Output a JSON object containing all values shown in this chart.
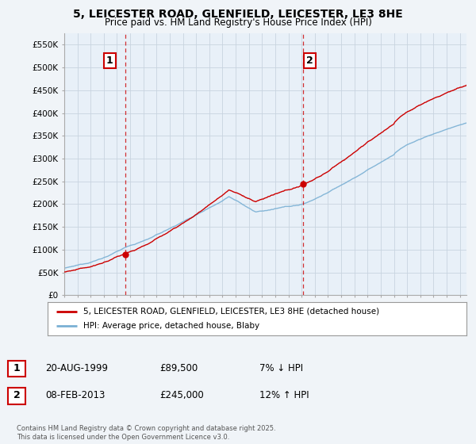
{
  "title": "5, LEICESTER ROAD, GLENFIELD, LEICESTER, LE3 8HE",
  "subtitle": "Price paid vs. HM Land Registry's House Price Index (HPI)",
  "ylabel_ticks": [
    "£0",
    "£50K",
    "£100K",
    "£150K",
    "£200K",
    "£250K",
    "£300K",
    "£350K",
    "£400K",
    "£450K",
    "£500K",
    "£550K"
  ],
  "ytick_values": [
    0,
    50000,
    100000,
    150000,
    200000,
    250000,
    300000,
    350000,
    400000,
    450000,
    500000,
    550000
  ],
  "ylim": [
    0,
    575000
  ],
  "background_color": "#f0f4f8",
  "plot_bg_color": "#e8f0f8",
  "grid_color": "#c8d4e0",
  "line1_color": "#cc0000",
  "line2_color": "#7ab0d4",
  "sale1_date_x": 1999.64,
  "sale1_price": 89500,
  "sale2_date_x": 2013.1,
  "sale2_price": 245000,
  "vline_color": "#cc0000",
  "legend_label1": "5, LEICESTER ROAD, GLENFIELD, LEICESTER, LE3 8HE (detached house)",
  "legend_label2": "HPI: Average price, detached house, Blaby",
  "annotation1_date": "20-AUG-1999",
  "annotation1_price": "£89,500",
  "annotation1_hpi": "7% ↓ HPI",
  "annotation2_date": "08-FEB-2013",
  "annotation2_price": "£245,000",
  "annotation2_hpi": "12% ↑ HPI",
  "footer": "Contains HM Land Registry data © Crown copyright and database right 2025.\nThis data is licensed under the Open Government Licence v3.0.",
  "xmin": 1995,
  "xmax": 2025.5
}
